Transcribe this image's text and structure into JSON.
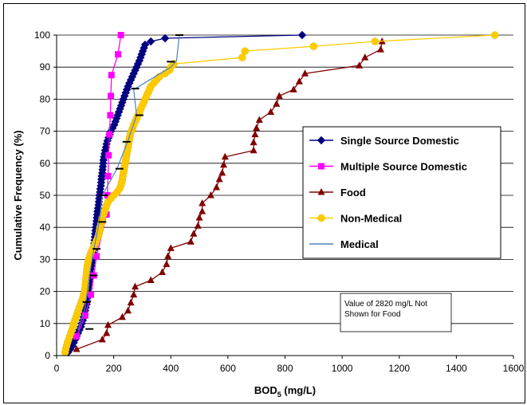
{
  "chart_data": {
    "type": "line",
    "xlabel": "BOD5 (mg/L)",
    "xlabel_main": "BOD",
    "xlabel_sub": "5",
    "xlabel_unit": " (mg/L)",
    "ylabel": "Cumulative Frequency (%)",
    "xlim": [
      0,
      1600
    ],
    "ylim": [
      0,
      100
    ],
    "x_ticks": [
      "0",
      "200",
      "400",
      "600",
      "800",
      "1000",
      "1200",
      "1400",
      "1600"
    ],
    "y_ticks": [
      "0",
      "10",
      "20",
      "30",
      "40",
      "50",
      "60",
      "70",
      "80",
      "90",
      "100"
    ],
    "grid": "horizontal",
    "legend_position": "right",
    "annotation": [
      "Value of 2820 mg/L Not",
      "Shown for Food"
    ],
    "series": [
      {
        "name": "Single Source Domestic",
        "marker": "diamond",
        "color": "#000080",
        "points": [
          [
            40,
            1
          ],
          [
            48,
            2
          ],
          [
            55,
            3
          ],
          [
            60,
            4
          ],
          [
            65,
            5
          ],
          [
            70,
            6
          ],
          [
            75,
            7
          ],
          [
            80,
            8
          ],
          [
            85,
            9
          ],
          [
            88,
            10
          ],
          [
            92,
            11
          ],
          [
            95,
            12
          ],
          [
            98,
            13
          ],
          [
            100,
            14
          ],
          [
            102,
            15
          ],
          [
            105,
            16
          ],
          [
            107,
            17
          ],
          [
            108,
            18
          ],
          [
            110,
            19
          ],
          [
            112,
            20
          ],
          [
            113,
            21
          ],
          [
            114,
            22
          ],
          [
            115,
            23
          ],
          [
            116,
            24
          ],
          [
            117,
            25
          ],
          [
            118,
            26
          ],
          [
            120,
            27
          ],
          [
            122,
            28
          ],
          [
            124,
            29
          ],
          [
            125,
            30
          ],
          [
            127,
            31
          ],
          [
            128,
            32
          ],
          [
            130,
            33
          ],
          [
            131,
            34
          ],
          [
            132,
            35
          ],
          [
            133,
            36
          ],
          [
            134,
            37
          ],
          [
            135,
            38
          ],
          [
            136,
            39
          ],
          [
            137,
            40
          ],
          [
            139,
            41
          ],
          [
            140,
            42
          ],
          [
            141,
            43
          ],
          [
            142,
            44
          ],
          [
            143,
            45
          ],
          [
            145,
            46
          ],
          [
            147,
            47
          ],
          [
            148,
            48
          ],
          [
            149,
            49
          ],
          [
            150,
            50
          ],
          [
            152,
            51
          ],
          [
            153,
            52
          ],
          [
            155,
            53
          ],
          [
            156,
            54
          ],
          [
            157,
            55
          ],
          [
            158,
            56
          ],
          [
            160,
            57
          ],
          [
            161,
            58
          ],
          [
            162,
            59
          ],
          [
            163,
            60
          ],
          [
            164,
            61
          ],
          [
            166,
            62
          ],
          [
            168,
            63
          ],
          [
            170,
            64
          ],
          [
            173,
            65
          ],
          [
            175,
            66
          ],
          [
            178,
            67
          ],
          [
            182,
            68
          ],
          [
            186,
            69
          ],
          [
            190,
            70
          ],
          [
            196,
            71
          ],
          [
            202,
            72
          ],
          [
            206,
            73
          ],
          [
            210,
            74
          ],
          [
            214,
            75
          ],
          [
            218,
            76
          ],
          [
            222,
            77
          ],
          [
            226,
            78
          ],
          [
            230,
            79
          ],
          [
            234,
            80
          ],
          [
            238,
            81
          ],
          [
            242,
            82
          ],
          [
            246,
            83
          ],
          [
            250,
            84
          ],
          [
            255,
            85
          ],
          [
            260,
            86
          ],
          [
            265,
            87
          ],
          [
            270,
            88
          ],
          [
            275,
            89
          ],
          [
            280,
            90
          ],
          [
            285,
            91
          ],
          [
            290,
            92
          ],
          [
            294,
            93
          ],
          [
            298,
            94
          ],
          [
            302,
            95
          ],
          [
            306,
            96
          ],
          [
            310,
            97
          ],
          [
            330,
            98
          ],
          [
            380,
            99
          ],
          [
            860,
            100
          ]
        ]
      },
      {
        "name": "Multiple Source Domestic",
        "marker": "square",
        "color": "#ff00ff",
        "points": [
          [
            70,
            6
          ],
          [
            100,
            12.5
          ],
          [
            120,
            19
          ],
          [
            130,
            25
          ],
          [
            140,
            31
          ],
          [
            175,
            44
          ],
          [
            178,
            50
          ],
          [
            180,
            56
          ],
          [
            182,
            62.5
          ],
          [
            185,
            69
          ],
          [
            188,
            75
          ],
          [
            190,
            81
          ],
          [
            192,
            87.5
          ],
          [
            215,
            94
          ],
          [
            225,
            100
          ]
        ]
      },
      {
        "name": "Food",
        "marker": "triangle",
        "color": "#800000",
        "points": [
          [
            70,
            2
          ],
          [
            160,
            5
          ],
          [
            175,
            7
          ],
          [
            180,
            9.5
          ],
          [
            230,
            12
          ],
          [
            250,
            14
          ],
          [
            260,
            16.5
          ],
          [
            270,
            19
          ],
          [
            275,
            21.5
          ],
          [
            330,
            23.5
          ],
          [
            370,
            26
          ],
          [
            385,
            28.5
          ],
          [
            390,
            31
          ],
          [
            400,
            33.5
          ],
          [
            470,
            35.5
          ],
          [
            480,
            38
          ],
          [
            495,
            40.5
          ],
          [
            500,
            43
          ],
          [
            510,
            45
          ],
          [
            510,
            47.5
          ],
          [
            540,
            50
          ],
          [
            560,
            52.5
          ],
          [
            570,
            55
          ],
          [
            580,
            57
          ],
          [
            585,
            59.5
          ],
          [
            590,
            62
          ],
          [
            690,
            64
          ],
          [
            690,
            66.5
          ],
          [
            695,
            69
          ],
          [
            700,
            71
          ],
          [
            710,
            73.5
          ],
          [
            750,
            76
          ],
          [
            770,
            78.5
          ],
          [
            780,
            81
          ],
          [
            830,
            83
          ],
          [
            850,
            85.5
          ],
          [
            870,
            88
          ],
          [
            1060,
            90.5
          ],
          [
            1080,
            93
          ],
          [
            1135,
            95.5
          ],
          [
            1140,
            98
          ]
        ]
      },
      {
        "name": "Non-Medical",
        "marker": "circle",
        "color": "#ffcc00",
        "points": [
          [
            30,
            1
          ],
          [
            32,
            2
          ],
          [
            35,
            3
          ],
          [
            38,
            4
          ],
          [
            42,
            5
          ],
          [
            46,
            6
          ],
          [
            50,
            7
          ],
          [
            54,
            8
          ],
          [
            58,
            9
          ],
          [
            60,
            10
          ],
          [
            64,
            11
          ],
          [
            68,
            12
          ],
          [
            72,
            13
          ],
          [
            76,
            14
          ],
          [
            80,
            15
          ],
          [
            84,
            16
          ],
          [
            88,
            17
          ],
          [
            92,
            18
          ],
          [
            95,
            19
          ],
          [
            98,
            20
          ],
          [
            100,
            21
          ],
          [
            101,
            22
          ],
          [
            102,
            23
          ],
          [
            103,
            24
          ],
          [
            104,
            25
          ],
          [
            105,
            26
          ],
          [
            106,
            27
          ],
          [
            108,
            28
          ],
          [
            110,
            29
          ],
          [
            112,
            30
          ],
          [
            116,
            31
          ],
          [
            120,
            32
          ],
          [
            125,
            33
          ],
          [
            130,
            34
          ],
          [
            135,
            35
          ],
          [
            140,
            36
          ],
          [
            145,
            37
          ],
          [
            148,
            38
          ],
          [
            150,
            39
          ],
          [
            152,
            40
          ],
          [
            155,
            41
          ],
          [
            158,
            42
          ],
          [
            160,
            43
          ],
          [
            164,
            44
          ],
          [
            168,
            45
          ],
          [
            172,
            46
          ],
          [
            176,
            47
          ],
          [
            180,
            48
          ],
          [
            190,
            49
          ],
          [
            200,
            50
          ],
          [
            212,
            51
          ],
          [
            220,
            52
          ],
          [
            225,
            53
          ],
          [
            228,
            54
          ],
          [
            230,
            55
          ],
          [
            232,
            56
          ],
          [
            234,
            57
          ],
          [
            236,
            58
          ],
          [
            238,
            59
          ],
          [
            240,
            60
          ],
          [
            242,
            61
          ],
          [
            244,
            62
          ],
          [
            246,
            63
          ],
          [
            248,
            64
          ],
          [
            250,
            65
          ],
          [
            252,
            66
          ],
          [
            254,
            67
          ],
          [
            256,
            68
          ],
          [
            258,
            69
          ],
          [
            262,
            70
          ],
          [
            266,
            71
          ],
          [
            270,
            72
          ],
          [
            275,
            73
          ],
          [
            280,
            74
          ],
          [
            285,
            75
          ],
          [
            290,
            76
          ],
          [
            295,
            77
          ],
          [
            300,
            78
          ],
          [
            305,
            79
          ],
          [
            310,
            80
          ],
          [
            315,
            81
          ],
          [
            320,
            82
          ],
          [
            325,
            83
          ],
          [
            330,
            84
          ],
          [
            340,
            85
          ],
          [
            350,
            86
          ],
          [
            360,
            87
          ],
          [
            380,
            88
          ],
          [
            395,
            89
          ],
          [
            400,
            90
          ],
          [
            410,
            91
          ],
          [
            650,
            93
          ],
          [
            660,
            95
          ],
          [
            900,
            96.5
          ],
          [
            1115,
            98
          ],
          [
            1535,
            100
          ]
        ]
      },
      {
        "name": "Medical",
        "marker": "none",
        "color": "#4f81bd",
        "points": [
          [
            75,
            8
          ],
          [
            100,
            15
          ],
          [
            115,
            25
          ],
          [
            130,
            33
          ],
          [
            150,
            42
          ],
          [
            160,
            50
          ],
          [
            210,
            58
          ],
          [
            250,
            67
          ],
          [
            280,
            75
          ],
          [
            270,
            83
          ],
          [
            400,
            90
          ],
          [
            420,
            92
          ],
          [
            430,
            100
          ]
        ]
      },
      {
        "name": "",
        "marker": "dash",
        "color": "#000000",
        "points": [
          [
            115,
            8.3
          ],
          [
            105,
            16.7
          ],
          [
            130,
            25
          ],
          [
            140,
            33.3
          ],
          [
            160,
            41.7
          ],
          [
            165,
            50
          ],
          [
            220,
            58.3
          ],
          [
            245,
            66.7
          ],
          [
            290,
            75
          ],
          [
            275,
            83.3
          ],
          [
            400,
            91.7
          ],
          [
            430,
            100
          ]
        ]
      }
    ]
  }
}
